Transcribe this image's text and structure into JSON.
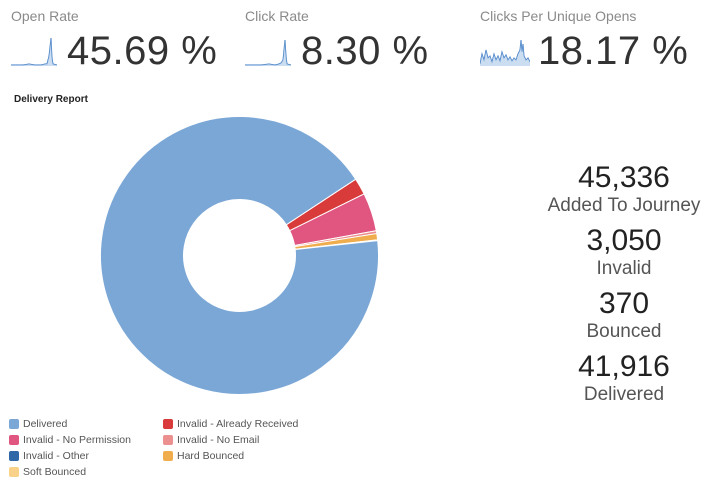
{
  "kpis": {
    "open_rate": {
      "label": "Open Rate",
      "value": "45.69 %"
    },
    "click_rate": {
      "label": "Click Rate",
      "value": "8.30 %"
    },
    "clicks_per_unique_opens": {
      "label": "Clicks Per Unique Opens",
      "value": "18.17 %"
    }
  },
  "delivery_report": {
    "title": "Delivery Report",
    "stats": [
      {
        "value": "45,336",
        "label": "Added To Journey"
      },
      {
        "value": "3,050",
        "label": "Invalid"
      },
      {
        "value": "370",
        "label": "Bounced"
      },
      {
        "value": "41,916",
        "label": "Delivered"
      }
    ],
    "legend": [
      {
        "label": "Delivered",
        "color": "#7ba7d6"
      },
      {
        "label": "Invalid - Already Received",
        "color": "#d93a3a"
      },
      {
        "label": "Invalid - No Permission",
        "color": "#e05680"
      },
      {
        "label": "Invalid - No Email",
        "color": "#ec8f8f"
      },
      {
        "label": "Invalid - Other",
        "color": "#2e68a6"
      },
      {
        "label": "Hard Bounced",
        "color": "#f0ad4e"
      },
      {
        "label": "Soft Bounced",
        "color": "#f9d28a"
      }
    ]
  },
  "chart_data": {
    "type": "pie",
    "title": "Delivery Report",
    "donut": true,
    "categories": [
      "Delivered",
      "Invalid - Already Received",
      "Invalid - No Permission",
      "Invalid - No Email",
      "Invalid - Other",
      "Hard Bounced",
      "Soft Bounced"
    ],
    "values": [
      41916,
      880,
      2020,
      150,
      0,
      330,
      40
    ],
    "colors": [
      "#7ba7d6",
      "#d93a3a",
      "#e05680",
      "#ec8f8f",
      "#2e68a6",
      "#f0ad4e",
      "#f9d28a"
    ],
    "legend_position": "bottom"
  }
}
